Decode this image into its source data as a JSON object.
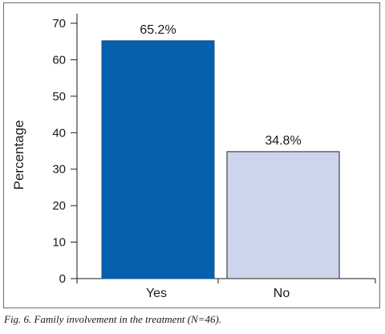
{
  "chart_data": {
    "type": "bar",
    "categories": [
      "Yes",
      "No"
    ],
    "values": [
      65.2,
      34.8
    ],
    "data_labels": [
      "65.2%",
      "34.8%"
    ],
    "ylabel": "Percentage",
    "xlabel": "",
    "ylim": [
      0,
      70
    ],
    "yticks": [
      0,
      10,
      20,
      30,
      40,
      50,
      60,
      70
    ],
    "bar_colors": [
      "#0660ad",
      "#cdd5ec"
    ],
    "bar_edge_colors": [
      "#0a4f8f",
      "#222222"
    ],
    "grid": false,
    "legend": "none"
  },
  "caption": "Fig. 6. Family involvement in the treatment (N=46)."
}
